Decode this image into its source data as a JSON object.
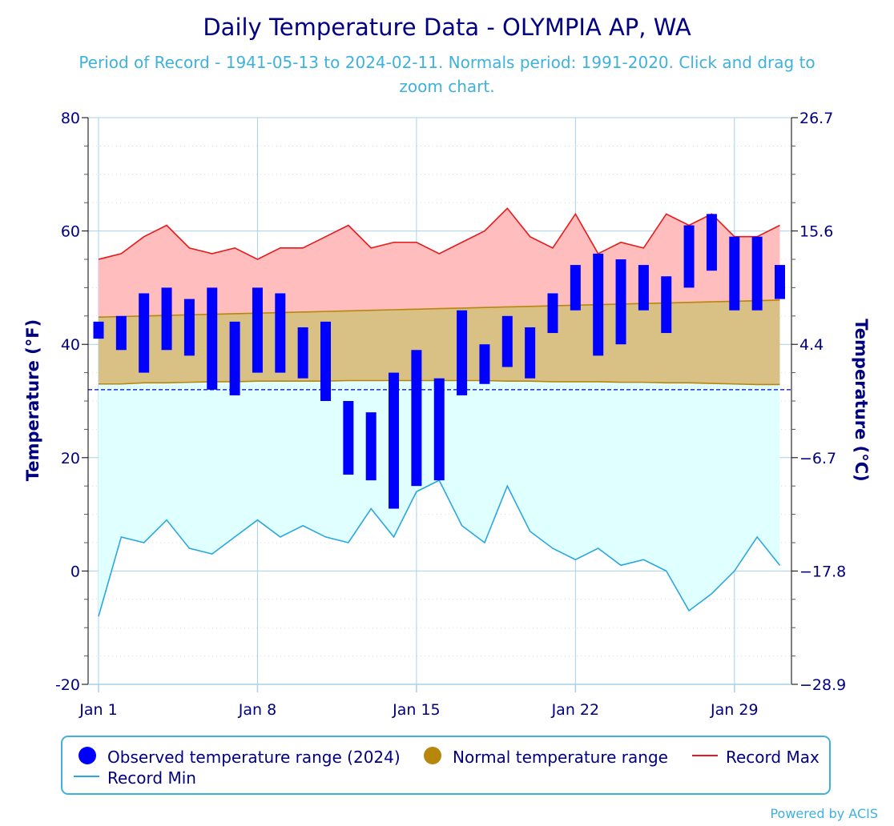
{
  "chart_data": {
    "type": "bar",
    "title": "Daily Temperature Data - OLYMPIA AP, WA",
    "subtitle_line1": "Period of Record - 1941-05-13 to 2024-02-11. Normals period: 1991-2020. Click and drag to",
    "subtitle_line2": "zoom chart.",
    "ylabel_left": "Temperature (°F)",
    "ylabel_right": "Temperature (°C)",
    "ylim": [
      -20,
      80
    ],
    "yticks_left": [
      -20,
      0,
      20,
      40,
      60,
      80
    ],
    "yticks_right": [
      "−28.9",
      "−17.8",
      "−6.7",
      "4.4",
      "15.6",
      "26.7"
    ],
    "xlim": [
      1,
      31
    ],
    "xticks": [
      {
        "day": 1,
        "label": "Jan 1"
      },
      {
        "day": 8,
        "label": "Jan 8"
      },
      {
        "day": 15,
        "label": "Jan 15"
      },
      {
        "day": 22,
        "label": "Jan 22"
      },
      {
        "day": 29,
        "label": "Jan 29"
      }
    ],
    "freezing_line": 32,
    "days": [
      1,
      2,
      3,
      4,
      5,
      6,
      7,
      8,
      9,
      10,
      11,
      12,
      13,
      14,
      15,
      16,
      17,
      18,
      19,
      20,
      21,
      22,
      23,
      24,
      25,
      26,
      27,
      28,
      29,
      30,
      31
    ],
    "series": [
      {
        "name": "Observed temperature range (2024)",
        "low": [
          41,
          39,
          35,
          39,
          38,
          32,
          31,
          35,
          35,
          34,
          30,
          17,
          16,
          11,
          15,
          16,
          31,
          33,
          36,
          34,
          42,
          46,
          38,
          40,
          46,
          42,
          50,
          53,
          46,
          46,
          48
        ],
        "high": [
          44,
          45,
          49,
          50,
          48,
          50,
          44,
          50,
          49,
          43,
          44,
          30,
          28,
          35,
          39,
          34,
          46,
          40,
          45,
          43,
          49,
          54,
          56,
          55,
          54,
          52,
          61,
          63,
          59,
          59,
          54
        ]
      },
      {
        "name": "Normal temperature range",
        "low": [
          33,
          33,
          33.2,
          33.2,
          33.3,
          33.4,
          33.4,
          33.5,
          33.5,
          33.5,
          33.5,
          33.6,
          33.6,
          33.6,
          33.6,
          33.6,
          33.6,
          33.6,
          33.5,
          33.5,
          33.4,
          33.4,
          33.4,
          33.3,
          33.3,
          33.2,
          33.2,
          33.1,
          33,
          32.9,
          32.9
        ],
        "high": [
          44.8,
          44.9,
          45,
          45.1,
          45.2,
          45.3,
          45.4,
          45.5,
          45.6,
          45.7,
          45.8,
          45.9,
          46,
          46.1,
          46.2,
          46.3,
          46.4,
          46.5,
          46.6,
          46.7,
          46.8,
          46.9,
          47,
          47.1,
          47.2,
          47.3,
          47.4,
          47.5,
          47.6,
          47.7,
          47.8
        ]
      },
      {
        "name": "Record Max",
        "values": [
          55,
          56,
          59,
          61,
          57,
          56,
          57,
          55,
          57,
          57,
          59,
          61,
          57,
          58,
          58,
          56,
          58,
          60,
          64,
          59,
          57,
          63,
          56,
          58,
          57,
          63,
          61,
          63,
          59,
          59,
          61
        ]
      },
      {
        "name": "Record Min",
        "values": [
          -8,
          6,
          5,
          9,
          4,
          3,
          6,
          9,
          6,
          8,
          6,
          5,
          11,
          6,
          14,
          16,
          8,
          5,
          15,
          7,
          4,
          2,
          4,
          1,
          2,
          0,
          -7,
          -4,
          0,
          6,
          1
        ]
      }
    ],
    "colors": {
      "observed": "#0000ff",
      "normal": "#b8860b",
      "normal_fill": "#d9c085",
      "record_max_line": "#e8191a",
      "record_max_fill": "#ffbdbd",
      "record_min_line": "#29a8e0",
      "record_min_fill": "#e0ffff",
      "axis_text": "#000080",
      "subtitle": "#3eb1dc",
      "grid": "#a8d1ec",
      "freezing": "#0000c0"
    },
    "legend": {
      "placement": "bottom",
      "items": [
        {
          "label": "Observed temperature range (2024)",
          "symbol": "circle",
          "color": "#0000ff"
        },
        {
          "label": "Normal temperature range",
          "symbol": "circle",
          "color": "#b8860b"
        },
        {
          "label": "Record Max",
          "symbol": "line",
          "color": "#e8191a"
        },
        {
          "label": "Record Min",
          "symbol": "line",
          "color": "#29a8e0"
        }
      ]
    },
    "credit": "Powered by ACIS"
  }
}
